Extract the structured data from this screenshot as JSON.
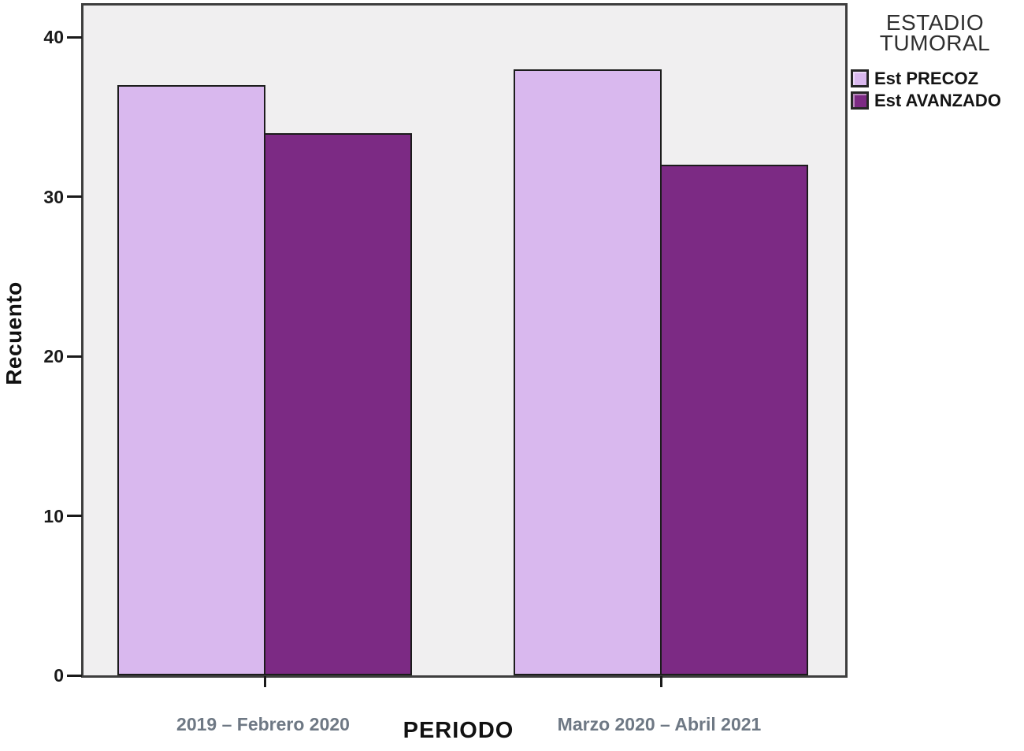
{
  "chart_data": {
    "type": "bar",
    "title": "",
    "xlabel": "PERIODO",
    "ylabel": "Recuento",
    "categories": [
      "2019 – Febrero 2020",
      "Marzo 2020 – Abril 2021"
    ],
    "series": [
      {
        "name": "Est PRECOZ",
        "values": [
          37,
          38
        ],
        "color": "#d9b8ee"
      },
      {
        "name": "Est AVANZADO",
        "values": [
          34,
          32
        ],
        "color": "#7c2a84"
      }
    ],
    "ylim": [
      0,
      42
    ],
    "yticks": [
      0,
      10,
      20,
      30,
      40
    ],
    "grid": false,
    "legend_title": "ESTADIO TUMORAL",
    "legend_title_lines": [
      "ESTADIO",
      "TUMORAL"
    ],
    "legend_position": "top-right",
    "colors": {
      "plot_background": "#f0eff0",
      "plot_frame": "#3e3e3e",
      "bar_border": "#1c1c1c",
      "axis_text": "#1a1a1a",
      "category_label": "#6e7884",
      "legend_title_text": "#2f2f2f"
    }
  }
}
